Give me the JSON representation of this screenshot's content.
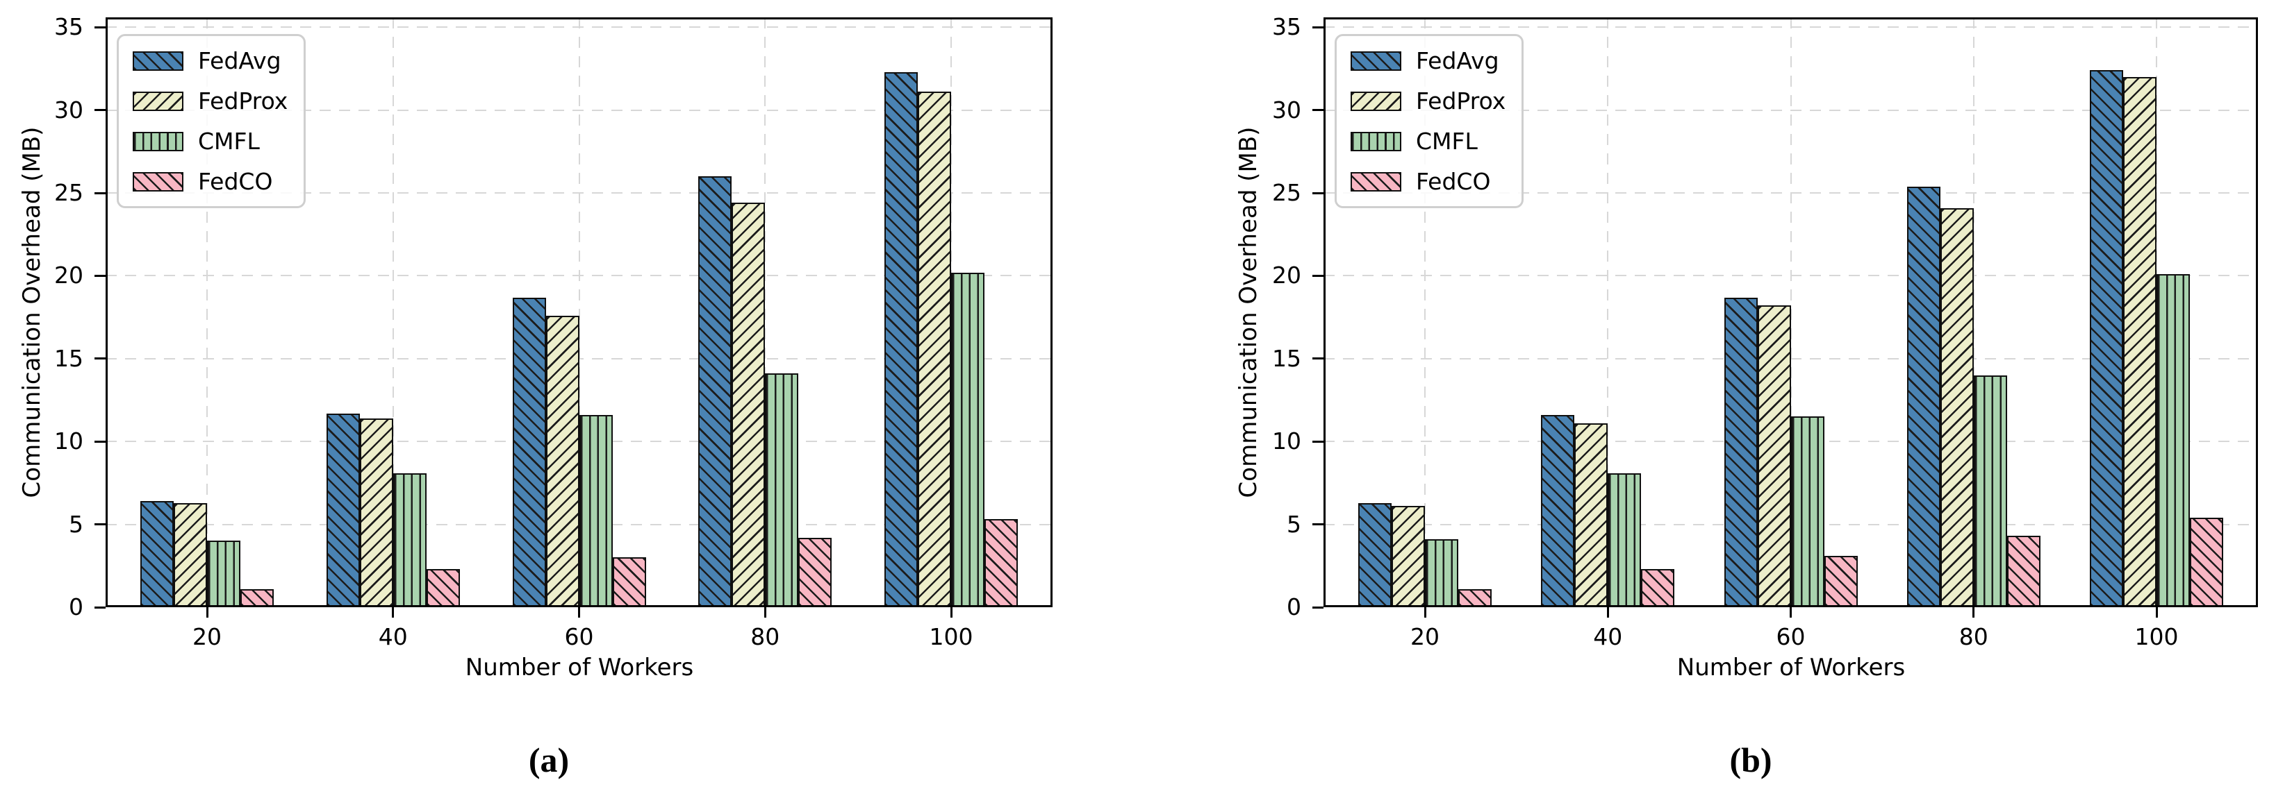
{
  "figure": {
    "background": "#ffffff",
    "text_color": "#000000",
    "grid_color": "#d7d7d7",
    "axis_color": "#000000",
    "bar_edge_color": "#0f0f0f",
    "hatch_color": "#1c1c1c",
    "legend_border_color": "#cfcfcf"
  },
  "series_styles": [
    {
      "name": "FedAvg",
      "color": "#4a83b3",
      "hatch": "backslash"
    },
    {
      "name": "FedProx",
      "color": "#edeecb",
      "hatch": "slash"
    },
    {
      "name": "CMFL",
      "color": "#a9d3ae",
      "hatch": "vertical"
    },
    {
      "name": "FedCO",
      "color": "#f8b6c3",
      "hatch": "backslash"
    }
  ],
  "chart_data": [
    {
      "type": "bar",
      "panel_label": "(a)",
      "xlabel": "Number of Workers",
      "ylabel": "Communication Overhead (MB)",
      "categories": [
        "20",
        "40",
        "60",
        "80",
        "100"
      ],
      "yticks": [
        "0",
        "5",
        "10",
        "15",
        "20",
        "25",
        "30",
        "35"
      ],
      "ylim": [
        0,
        35
      ],
      "grid": true,
      "legend_position": "upper left",
      "series": [
        {
          "name": "FedAvg",
          "values": [
            6.4,
            11.7,
            18.7,
            26.0,
            32.3
          ]
        },
        {
          "name": "FedProx",
          "values": [
            6.3,
            11.4,
            17.6,
            24.4,
            31.1
          ]
        },
        {
          "name": "CMFL",
          "values": [
            4.0,
            8.1,
            11.6,
            14.1,
            20.2
          ]
        },
        {
          "name": "FedCO",
          "values": [
            1.1,
            2.3,
            3.0,
            4.2,
            5.3
          ]
        }
      ]
    },
    {
      "type": "bar",
      "panel_label": "(b)",
      "xlabel": "Number of Workers",
      "ylabel": "Communication Overhead (MB)",
      "categories": [
        "20",
        "40",
        "60",
        "80",
        "100"
      ],
      "yticks": [
        "0",
        "5",
        "10",
        "15",
        "20",
        "25",
        "30",
        "35"
      ],
      "ylim": [
        0,
        35
      ],
      "grid": true,
      "legend_position": "upper left",
      "series": [
        {
          "name": "FedAvg",
          "values": [
            6.3,
            11.6,
            18.7,
            25.4,
            32.4
          ]
        },
        {
          "name": "FedProx",
          "values": [
            6.1,
            11.1,
            18.2,
            24.1,
            32.0
          ]
        },
        {
          "name": "CMFL",
          "values": [
            4.1,
            8.1,
            11.5,
            14.0,
            20.1
          ]
        },
        {
          "name": "FedCO",
          "values": [
            1.1,
            2.3,
            3.1,
            4.3,
            5.4
          ]
        }
      ]
    }
  ]
}
